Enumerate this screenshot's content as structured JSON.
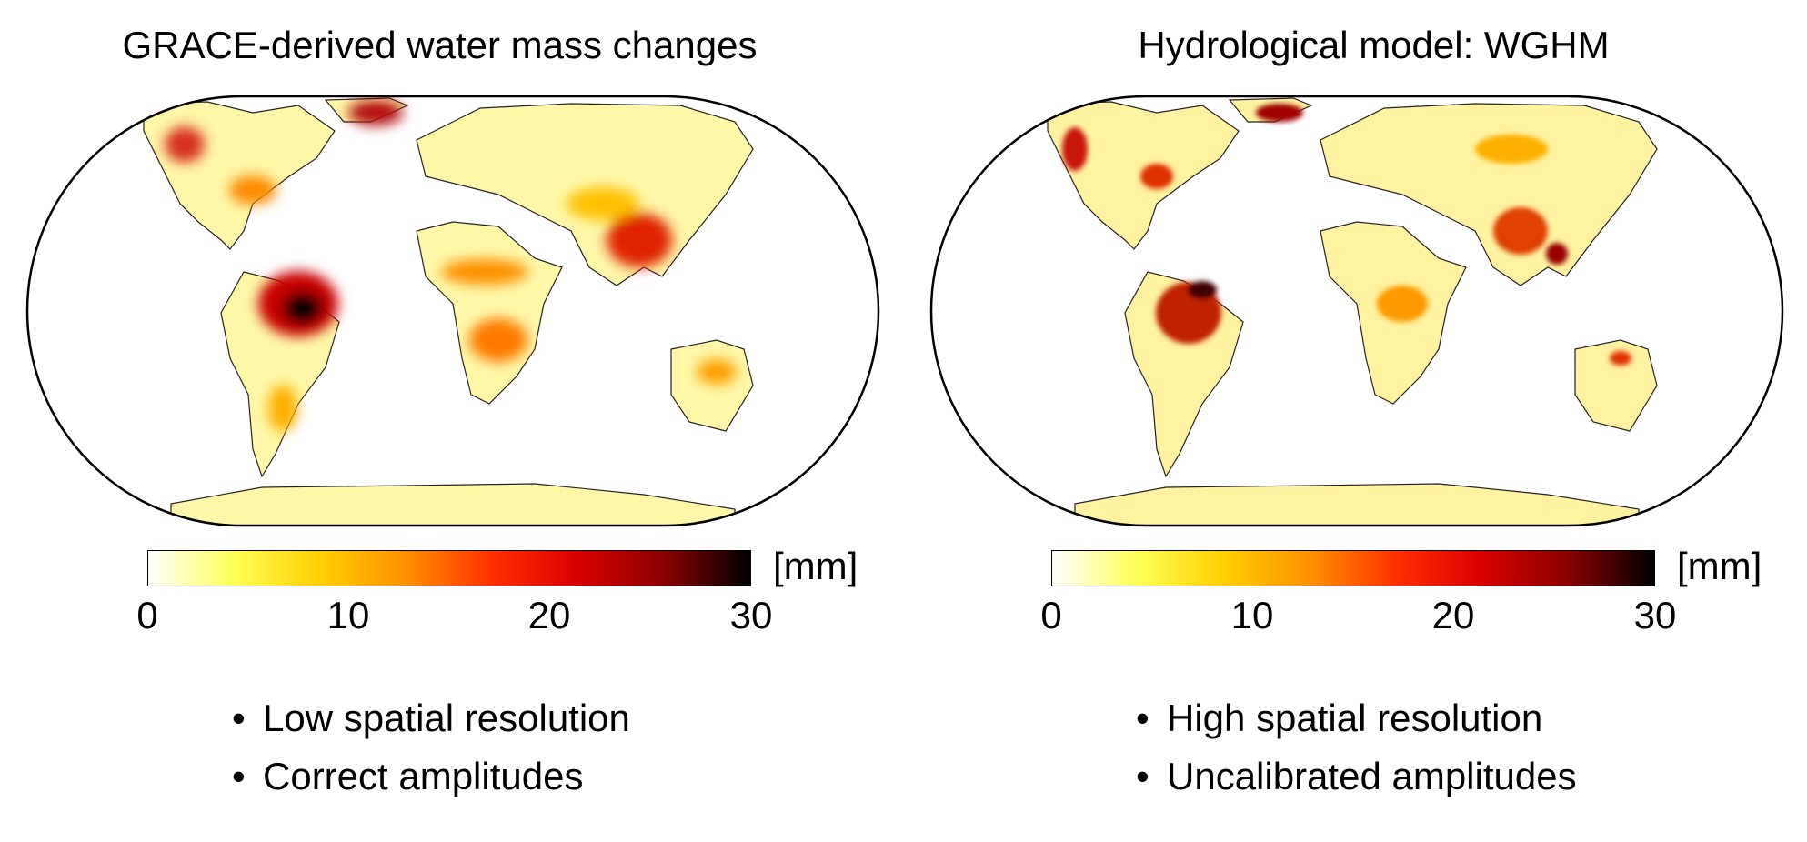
{
  "panels": [
    {
      "title": "GRACE-derived water mass changes",
      "colorbar": {
        "unit": "[mm]",
        "ticks": [
          "0",
          "10",
          "20",
          "30"
        ],
        "range": [
          0,
          30
        ],
        "colors": [
          "#ffffff",
          "#ffff55",
          "#ffd000",
          "#ff9000",
          "#ff3000",
          "#d80000",
          "#8a0000",
          "#000000"
        ]
      },
      "bullets": [
        "Low spatial resolution",
        "Correct amplitudes"
      ]
    },
    {
      "title": "Hydrological model: WGHM",
      "colorbar": {
        "unit": "[mm]",
        "ticks": [
          "0",
          "10",
          "20",
          "30"
        ],
        "range": [
          0,
          30
        ],
        "colors": [
          "#ffffff",
          "#ffff55",
          "#ffd000",
          "#ff9000",
          "#ff3000",
          "#d80000",
          "#8a0000",
          "#000000"
        ]
      },
      "bullets": [
        "High spatial resolution",
        "Uncalibrated amplitudes"
      ]
    }
  ]
}
